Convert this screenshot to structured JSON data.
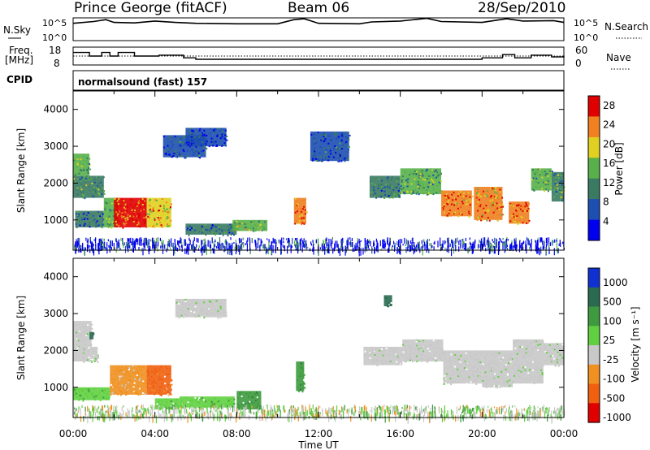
{
  "header": {
    "station": "Prince George (fitACF)",
    "beam": "Beam 06",
    "date": "28/Sep/2010"
  },
  "top_panels": {
    "nsky_label": "N.Sky",
    "nsearch_label": "N.Search",
    "nsky_tick_hi": "10^5",
    "nsky_tick_lo": "10^0",
    "freq_label_1": "Freq.",
    "freq_label_2": "[MHz]",
    "freq_ticks": [
      "18",
      "8"
    ],
    "nave_label": "Nave",
    "nave_ticks": [
      "60",
      "0"
    ],
    "cpid_label": "CPID",
    "cpid_value": "normalsound (fast) 157"
  },
  "chart_data": [
    {
      "type": "line",
      "name": "N.Sky",
      "x": [
        0,
        1,
        1.6,
        2,
        3,
        4,
        5,
        6,
        8,
        10,
        10.8,
        11.3,
        12,
        14,
        14.6,
        16,
        17.3,
        18,
        20,
        21.2,
        22,
        23.5,
        24
      ],
      "values": [
        3.8,
        4.2,
        4.6,
        4.0,
        3.9,
        4.3,
        4.0,
        3.8,
        3.7,
        3.7,
        4.6,
        4.8,
        3.8,
        3.7,
        4.1,
        4.3,
        4.9,
        4.2,
        4.0,
        4.8,
        4.3,
        4.4,
        4.0
      ],
      "ylim": [
        0,
        5
      ],
      "xlim": [
        0,
        24
      ]
    },
    {
      "type": "line",
      "name": "Freq",
      "x": [
        0,
        0.8,
        1.4,
        1.8,
        2.2,
        3,
        4.2,
        5.4,
        6,
        10,
        14,
        18,
        20,
        21,
        21.6,
        22.4,
        23.4,
        24
      ],
      "values": [
        15,
        13,
        15,
        13,
        15,
        13,
        13.5,
        12,
        11.2,
        11.2,
        11.2,
        11.2,
        12,
        13.8,
        12,
        13.5,
        12.5,
        13.2
      ],
      "ylim": [
        8,
        18
      ],
      "xlim": [
        0,
        24
      ]
    },
    {
      "type": "heatmap",
      "title": "",
      "xlabel": "Time UT",
      "ylabel": "Slant Range [km]",
      "xlim": [
        0,
        24
      ],
      "ylim": [
        180,
        4500
      ],
      "x_ticks": [
        "00:00",
        "04:00",
        "08:00",
        "12:00",
        "16:00",
        "20:00",
        "00:00"
      ],
      "y_ticks": [
        "1000",
        "2000",
        "3000",
        "4000"
      ],
      "colorbar_label": "Power [dB]",
      "colorbar_ticks": [
        "4",
        "8",
        "12",
        "16",
        "20",
        "24",
        "28"
      ],
      "colorbar_colors": [
        "#0000ee",
        "#1c4fb0",
        "#3a7a63",
        "#58b04a",
        "#e0d020",
        "#f08020",
        "#e00000"
      ],
      "clim": [
        0,
        31
      ],
      "patches": [
        {
          "t0": 0.0,
          "t1": 0.8,
          "r0": 2200,
          "r1": 2800,
          "v": 15
        },
        {
          "t0": 0.0,
          "t1": 1.5,
          "r0": 1600,
          "r1": 2200,
          "v": 12
        },
        {
          "t0": 0.1,
          "t1": 1.5,
          "r0": 800,
          "r1": 1250,
          "v": 9
        },
        {
          "t0": 1.5,
          "t1": 2.2,
          "r0": 800,
          "r1": 1600,
          "v": 14
        },
        {
          "t0": 2.0,
          "t1": 3.6,
          "r0": 800,
          "r1": 1600,
          "v": 27
        },
        {
          "t0": 3.6,
          "t1": 4.8,
          "r0": 800,
          "r1": 1600,
          "v": 22
        },
        {
          "t0": 4.4,
          "t1": 6.5,
          "r0": 2700,
          "r1": 3300,
          "v": 7
        },
        {
          "t0": 5.5,
          "t1": 7.5,
          "r0": 3000,
          "r1": 3500,
          "v": 6
        },
        {
          "t0": 5.5,
          "t1": 8.0,
          "r0": 600,
          "r1": 900,
          "v": 9
        },
        {
          "t0": 7.8,
          "t1": 9.5,
          "r0": 700,
          "r1": 1000,
          "v": 16
        },
        {
          "t0": 10.8,
          "t1": 11.4,
          "r0": 900,
          "r1": 1600,
          "v": 25
        },
        {
          "t0": 11.6,
          "t1": 13.5,
          "r0": 2600,
          "r1": 3400,
          "v": 7
        },
        {
          "t0": 14.5,
          "t1": 16.0,
          "r0": 1600,
          "r1": 2200,
          "v": 11
        },
        {
          "t0": 16.0,
          "t1": 18.0,
          "r0": 1700,
          "r1": 2400,
          "v": 14
        },
        {
          "t0": 18.0,
          "t1": 19.5,
          "r0": 1100,
          "r1": 1800,
          "v": 24
        },
        {
          "t0": 19.6,
          "t1": 21.0,
          "r0": 1000,
          "r1": 1900,
          "v": 23
        },
        {
          "t0": 21.3,
          "t1": 22.3,
          "r0": 900,
          "r1": 1500,
          "v": 26
        },
        {
          "t0": 22.4,
          "t1": 23.4,
          "r0": 1800,
          "r1": 2400,
          "v": 15
        },
        {
          "t0": 23.4,
          "t1": 24.0,
          "r0": 1500,
          "r1": 2300,
          "v": 13
        }
      ]
    },
    {
      "type": "heatmap",
      "title": "",
      "xlabel": "Time UT",
      "ylabel": "Slant Range [km]",
      "xlim": [
        0,
        24
      ],
      "ylim": [
        180,
        4500
      ],
      "x_ticks": [
        "00:00",
        "04:00",
        "08:00",
        "12:00",
        "16:00",
        "20:00",
        "00:00"
      ],
      "y_ticks": [
        "1000",
        "2000",
        "3000",
        "4000"
      ],
      "colorbar_label": "Velocity [m s⁻¹]",
      "colorbar_ticks": [
        "1000",
        "500",
        "100",
        "25",
        "-25",
        "-100",
        "-500",
        "-1000"
      ],
      "colorbar_colors": [
        "#1030d0",
        "#2a6a50",
        "#3e9a3e",
        "#60d040",
        "#c8c8c8",
        "#f09020",
        "#f06010",
        "#e00000"
      ],
      "patches": [
        {
          "t0": 0.0,
          "t1": 0.9,
          "r0": 2100,
          "r1": 2800,
          "c": 4
        },
        {
          "t0": 0.0,
          "t1": 1.2,
          "r0": 1700,
          "r1": 2100,
          "c": 4
        },
        {
          "t0": 0.0,
          "t1": 1.8,
          "r0": 650,
          "r1": 1000,
          "c": 3
        },
        {
          "t0": 1.8,
          "t1": 3.6,
          "r0": 800,
          "r1": 1600,
          "c": 5
        },
        {
          "t0": 3.6,
          "t1": 4.8,
          "r0": 800,
          "r1": 1600,
          "c": 6
        },
        {
          "t0": 4.0,
          "t1": 5.2,
          "r0": 400,
          "r1": 700,
          "c": 3
        },
        {
          "t0": 5.0,
          "t1": 7.5,
          "r0": 2900,
          "r1": 3400,
          "c": 4
        },
        {
          "t0": 5.2,
          "t1": 7.9,
          "r0": 450,
          "r1": 750,
          "c": 3
        },
        {
          "t0": 8.0,
          "t1": 9.2,
          "r0": 400,
          "r1": 900,
          "c": 2
        },
        {
          "t0": 10.9,
          "t1": 11.3,
          "r0": 900,
          "r1": 1700,
          "c": 2
        },
        {
          "t0": 14.2,
          "t1": 16.1,
          "r0": 1600,
          "r1": 2100,
          "c": 4
        },
        {
          "t0": 16.1,
          "t1": 18.1,
          "r0": 1700,
          "r1": 2300,
          "c": 4
        },
        {
          "t0": 18.1,
          "t1": 20.0,
          "r0": 1100,
          "r1": 2000,
          "c": 4
        },
        {
          "t0": 20.0,
          "t1": 21.5,
          "r0": 1000,
          "r1": 2000,
          "c": 4
        },
        {
          "t0": 21.5,
          "t1": 23.0,
          "r0": 1100,
          "r1": 2300,
          "c": 4
        },
        {
          "t0": 23.0,
          "t1": 24.0,
          "r0": 1600,
          "r1": 2200,
          "c": 4
        },
        {
          "t0": 0.8,
          "t1": 1.0,
          "r0": 2300,
          "r1": 2500,
          "c": 1
        },
        {
          "t0": 15.2,
          "t1": 15.6,
          "r0": 3200,
          "r1": 3500,
          "c": 1
        }
      ]
    }
  ]
}
